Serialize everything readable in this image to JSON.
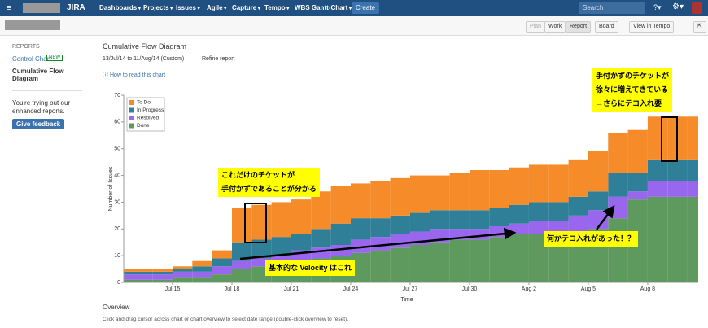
{
  "nav": {
    "logo": "JIRA",
    "items": [
      "Dashboards",
      "Projects",
      "Issues",
      "Agile",
      "Capture",
      "Tempo",
      "WBS Gantt-Chart"
    ],
    "create": "Create",
    "search": "Search"
  },
  "toolbar": {
    "buttons": [
      "Plan",
      "Work",
      "Report",
      "Board",
      "View in Tempo"
    ]
  },
  "sidebar": {
    "heading": "REPORTS",
    "control_chart": "Control Chart",
    "badge": "NEW",
    "current": "Cumulative Flow Diagram",
    "note": "You're trying out our enhanced reports.",
    "feedback": "Give feedback"
  },
  "report": {
    "title": "Cumulative Flow Diagram",
    "date_range": "13/Jul/14 to 11/Aug/14 (Custom)",
    "refine": "Refine report",
    "help": "How to read this chart",
    "overview": "Overview",
    "hint": "Click and drag cursor across chart or chart overview to select date range (double-click overview to reset)."
  },
  "chart_data": {
    "type": "area",
    "stacked": true,
    "x_label": "Time",
    "y_label": "Number of Issues",
    "categories": [
      null,
      null,
      "Jul 15",
      null,
      null,
      "Jul 18",
      null,
      null,
      "Jul 21",
      null,
      null,
      "Jul 24",
      null,
      null,
      "Jul 27",
      null,
      null,
      "Jul 30",
      null,
      null,
      "Aug 2",
      null,
      null,
      "Aug 5",
      null,
      null,
      "Aug 8",
      null,
      null
    ],
    "series": [
      {
        "name": "Done",
        "color": "#5e9a5e",
        "values": [
          1,
          1,
          2,
          2,
          3,
          5,
          6,
          7,
          8,
          9,
          10,
          11,
          12,
          13,
          14,
          15,
          16,
          16,
          17,
          18,
          18,
          19,
          19,
          20,
          24,
          31,
          32,
          32,
          32
        ]
      },
      {
        "name": "Resolved",
        "color": "#9966ee",
        "values": [
          2,
          2,
          2,
          2,
          3,
          3,
          3,
          3,
          4,
          4,
          4,
          5,
          5,
          5,
          5,
          5,
          4,
          4,
          4,
          4,
          5,
          4,
          6,
          7,
          8,
          3,
          6,
          6,
          6
        ]
      },
      {
        "name": "In Progress",
        "color": "#2f7f99",
        "values": [
          1,
          1,
          1,
          2,
          3,
          7,
          7,
          7,
          6,
          7,
          8,
          8,
          7,
          7,
          7,
          7,
          7,
          7,
          7,
          7,
          7,
          7,
          7,
          7,
          9,
          7,
          8,
          8,
          8
        ]
      },
      {
        "name": "To Do",
        "color": "#f68b2a",
        "values": [
          1,
          1,
          1,
          2,
          3,
          13,
          13,
          13,
          13,
          14,
          14,
          13,
          14,
          14,
          14,
          13,
          14,
          15,
          14,
          14,
          14,
          14,
          14,
          15,
          15,
          16,
          16,
          16,
          16
        ]
      }
    ],
    "ylim": [
      0,
      70
    ],
    "yticks": [
      0,
      10,
      20,
      30,
      40,
      50,
      60,
      70
    ]
  },
  "annotations": [
    {
      "lines": [
        "これだけのチケットが",
        "手付かずであることが分かる"
      ]
    },
    {
      "lines": [
        "手付かずのチケットが",
        "徐々に増えてきている",
        "→さらにテコ入れ要"
      ]
    },
    {
      "lines": [
        "何かテコ入れがあった！？"
      ]
    },
    {
      "lines": [
        "基本的な Velocity はこれ"
      ]
    }
  ]
}
